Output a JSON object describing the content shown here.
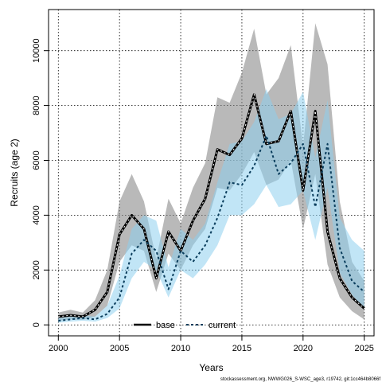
{
  "chart_data": {
    "type": "line",
    "title": "",
    "xlabel": "Years",
    "ylabel": "Recruits (age 2)",
    "xlim": [
      1999.2,
      2025.8
    ],
    "ylim": [
      -400,
      11500
    ],
    "xticks": [
      2000,
      2005,
      2010,
      2015,
      2020,
      2025
    ],
    "yticks": [
      0,
      2000,
      4000,
      6000,
      8000,
      10000
    ],
    "grid": true,
    "legend_position": "bottom-center",
    "x": [
      2000,
      2001,
      2002,
      2003,
      2004,
      2005,
      2006,
      2007,
      2008,
      2009,
      2010,
      2011,
      2012,
      2013,
      2014,
      2015,
      2016,
      2017,
      2018,
      2019,
      2020,
      2021,
      2022,
      2023,
      2024,
      2025
    ],
    "series": [
      {
        "name": "base",
        "color": "#000000",
        "band_color": "#808080",
        "values": [
          300,
          350,
          300,
          550,
          1200,
          3300,
          4000,
          3500,
          1700,
          3400,
          2700,
          3800,
          4600,
          6400,
          6200,
          6800,
          8400,
          6600,
          6700,
          7800,
          4900,
          7800,
          3400,
          1700,
          1000,
          600
        ],
        "lower": [
          150,
          200,
          180,
          300,
          700,
          2300,
          2900,
          2700,
          1200,
          2600,
          2000,
          2900,
          3500,
          5000,
          4900,
          5500,
          6300,
          5100,
          5300,
          6000,
          3500,
          5500,
          2200,
          1000,
          500,
          200
        ],
        "upper": [
          450,
          550,
          450,
          900,
          2000,
          4500,
          5500,
          4500,
          2400,
          4600,
          3700,
          5000,
          5900,
          8300,
          8100,
          9200,
          10800,
          8400,
          9000,
          10200,
          6500,
          11000,
          9500,
          4500,
          2300,
          1600
        ]
      },
      {
        "name": "current",
        "color": "#0a3d5c",
        "band_color": "#8ecfee",
        "values": [
          150,
          200,
          250,
          200,
          400,
          1000,
          2600,
          3100,
          2700,
          1300,
          2700,
          2300,
          2900,
          3900,
          5200,
          5100,
          5800,
          6900,
          5500,
          5900,
          6600,
          4300,
          6600,
          2800,
          1600,
          1200
        ],
        "lower": [
          80,
          120,
          150,
          120,
          250,
          600,
          1700,
          2300,
          2000,
          1000,
          2000,
          1700,
          2200,
          2900,
          4000,
          4000,
          4400,
          5100,
          4300,
          4400,
          4900,
          3100,
          5000,
          1900,
          1100,
          600
        ],
        "upper": [
          250,
          300,
          350,
          300,
          700,
          1800,
          3500,
          4000,
          3800,
          2100,
          3500,
          3100,
          3700,
          5200,
          6600,
          6700,
          7400,
          8600,
          7500,
          7700,
          8500,
          6100,
          8200,
          3900,
          3100,
          2700
        ]
      }
    ]
  },
  "footer": {
    "text": "stockassessment.org, NWWG026_S-WSC_age3, r19742, git:1cc464b8066f"
  }
}
